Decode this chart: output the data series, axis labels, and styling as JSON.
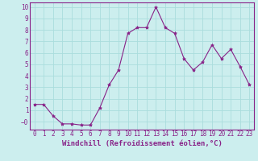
{
  "x": [
    0,
    1,
    2,
    3,
    4,
    5,
    6,
    7,
    8,
    9,
    10,
    11,
    12,
    13,
    14,
    15,
    16,
    17,
    18,
    19,
    20,
    21,
    22,
    23
  ],
  "y": [
    1.5,
    1.5,
    0.5,
    -0.2,
    -0.2,
    -0.3,
    -0.3,
    1.2,
    3.2,
    4.5,
    7.7,
    8.2,
    8.2,
    10.0,
    8.2,
    7.7,
    5.5,
    4.5,
    5.2,
    6.7,
    5.5,
    6.3,
    4.8,
    3.2
  ],
  "line_color": "#882288",
  "marker": "*",
  "marker_size": 3.0,
  "bg_color": "#cceeee",
  "grid_color": "#aadddd",
  "xlabel": "Windchill (Refroidissement éolien,°C)",
  "xlabel_fontsize": 6.5,
  "ytick_labels": [
    "−0",
    "1",
    "2",
    "3",
    "4",
    "5",
    "6",
    "7",
    "8",
    "9",
    "10"
  ],
  "ytick_vals": [
    -0.0,
    1,
    2,
    3,
    4,
    5,
    6,
    7,
    8,
    9,
    10
  ],
  "xticks": [
    0,
    1,
    2,
    3,
    4,
    5,
    6,
    7,
    8,
    9,
    10,
    11,
    12,
    13,
    14,
    15,
    16,
    17,
    18,
    19,
    20,
    21,
    22,
    23
  ],
  "ylim": [
    -0.7,
    10.4
  ],
  "xlim": [
    -0.5,
    23.5
  ],
  "tick_fontsize": 5.5,
  "spine_color": "#882288"
}
